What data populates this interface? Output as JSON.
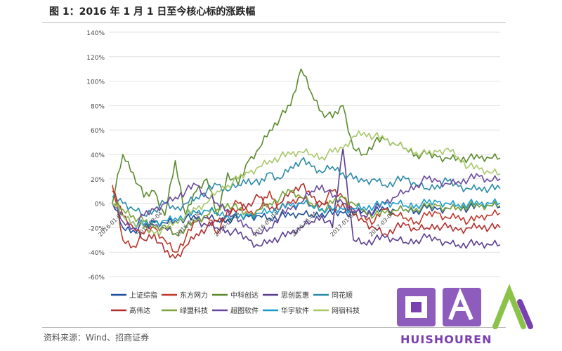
{
  "page": {
    "title": "图 1：2016 年 1 月 1 日至今核心标的涨跌幅",
    "source": "资料来源：Wind、招商证券",
    "watermark_text": "HUISHOUREN",
    "watermark_logo": "回收人",
    "watermark_color": "#7a3fb0"
  },
  "chart_data": {
    "type": "line",
    "title": "",
    "xlabel": "",
    "ylabel": "",
    "ylim": [
      -60,
      140
    ],
    "y_ticks": [
      -60,
      -40,
      -20,
      0,
      20,
      40,
      60,
      80,
      100,
      120,
      140
    ],
    "y_tick_labels": [
      "-60%",
      "-40%",
      "-20%",
      "0%",
      "20%",
      "40%",
      "60%",
      "80%",
      "100%",
      "120%",
      "140%"
    ],
    "x_tick_labels": [
      "2016-01-04",
      "2016-03-04",
      "2016-05-04",
      "2016-07-04",
      "2016-09-04",
      "2016-11-04",
      "2017-01-04",
      "2017-03-04"
    ],
    "grid": true,
    "legend_position": "bottom",
    "series": [
      {
        "name": "上证综指",
        "color": "#1f4e9c",
        "values": [
          0,
          -20,
          -22,
          -18,
          -15,
          -16,
          -14,
          -12,
          -13,
          -12,
          -14,
          -13,
          -12,
          -11,
          -10,
          -12,
          -11,
          -10,
          -9,
          -10,
          -8,
          -9,
          -8,
          -7,
          -6,
          -7,
          -5,
          -6,
          -5,
          -6,
          -4,
          -5,
          -4,
          -3,
          -4,
          -3,
          -2,
          -3
        ]
      },
      {
        "name": "东方网力",
        "color": "#c0392b",
        "values": [
          15,
          -30,
          -35,
          -25,
          -20,
          -30,
          -40,
          -28,
          -15,
          -10,
          -25,
          -5,
          0,
          -8,
          -5,
          10,
          -5,
          0,
          5,
          -2,
          0,
          10,
          5,
          -5,
          -10,
          -15,
          -5,
          -10,
          -12,
          -15,
          -10,
          -8,
          -12,
          -10,
          -15,
          -12,
          -10,
          -8
        ]
      },
      {
        "name": "中科创达",
        "color": "#5a8a2e",
        "values": [
          0,
          40,
          25,
          5,
          10,
          -10,
          35,
          -10,
          10,
          20,
          -10,
          25,
          15,
          35,
          45,
          60,
          70,
          80,
          110,
          90,
          75,
          70,
          80,
          45,
          40,
          50,
          52,
          48,
          45,
          40,
          40,
          38,
          37,
          37,
          37,
          37,
          37,
          37
        ]
      },
      {
        "name": "思创医惠",
        "color": "#5b3e8f",
        "values": [
          0,
          -10,
          -15,
          -20,
          -18,
          -20,
          -25,
          -20,
          -15,
          -18,
          -20,
          -22,
          -25,
          -30,
          -35,
          -30,
          -28,
          -25,
          -20,
          -15,
          -10,
          -20,
          45,
          -30,
          -32,
          -30,
          -28,
          -30,
          -32,
          -30,
          -28,
          -30,
          -32,
          -34,
          -33,
          -34,
          -34,
          -34
        ]
      },
      {
        "name": "同花顺",
        "color": "#2b8aa8",
        "values": [
          5,
          0,
          -5,
          -10,
          -5,
          0,
          -5,
          0,
          5,
          10,
          15,
          10,
          15,
          20,
          15,
          25,
          20,
          30,
          35,
          30,
          25,
          30,
          25,
          20,
          18,
          20,
          15,
          18,
          20,
          15,
          12,
          15,
          18,
          14,
          12,
          13,
          12,
          12
        ]
      },
      {
        "name": "高伟达",
        "color": "#b03030",
        "values": [
          10,
          -10,
          -20,
          -30,
          -25,
          -40,
          -45,
          -35,
          -25,
          -20,
          -15,
          -10,
          -5,
          0,
          5,
          -5,
          0,
          10,
          15,
          5,
          0,
          -5,
          0,
          -10,
          -15,
          -20,
          -25,
          -20,
          -18,
          -22,
          -20,
          -18,
          -20,
          -22,
          -20,
          -18,
          -20,
          -20
        ]
      },
      {
        "name": "绿盟科技",
        "color": "#7aa63a",
        "values": [
          0,
          -5,
          -10,
          -15,
          -20,
          -18,
          -25,
          -20,
          -15,
          -10,
          -5,
          0,
          -5,
          -10,
          -5,
          0,
          5,
          10,
          5,
          0,
          -5,
          0,
          5,
          0,
          -5,
          -10,
          -8,
          -6,
          -5,
          -4,
          -3,
          -2,
          -4,
          -3,
          -2,
          -3,
          -2,
          -2
        ]
      },
      {
        "name": "超图软件",
        "color": "#6a4a9f",
        "values": [
          0,
          -15,
          -20,
          -10,
          -5,
          0,
          5,
          10,
          15,
          5,
          0,
          -5,
          -15,
          -20,
          -25,
          -20,
          -10,
          -5,
          0,
          10,
          15,
          5,
          0,
          -5,
          -10,
          -5,
          0,
          5,
          10,
          15,
          20,
          18,
          16,
          18,
          20,
          22,
          18,
          20
        ]
      },
      {
        "name": "华宇软件",
        "color": "#1a9cc8",
        "values": [
          0,
          -10,
          -15,
          -18,
          -16,
          -14,
          -12,
          -10,
          -8,
          -6,
          -8,
          -10,
          -12,
          -10,
          -8,
          -6,
          -4,
          -2,
          0,
          -2,
          -4,
          -6,
          -5,
          -4,
          -3,
          -2,
          -1,
          0,
          -2,
          -1,
          0,
          1,
          0,
          -1,
          0,
          -1,
          0,
          0
        ]
      },
      {
        "name": "网宿科技",
        "color": "#a8c86a",
        "values": [
          0,
          -10,
          -15,
          -20,
          -25,
          -20,
          -15,
          -10,
          -5,
          0,
          10,
          15,
          20,
          25,
          30,
          35,
          38,
          40,
          42,
          40,
          38,
          42,
          45,
          55,
          58,
          55,
          52,
          48,
          45,
          42,
          40,
          42,
          45,
          38,
          30,
          28,
          25,
          24
        ]
      }
    ]
  }
}
